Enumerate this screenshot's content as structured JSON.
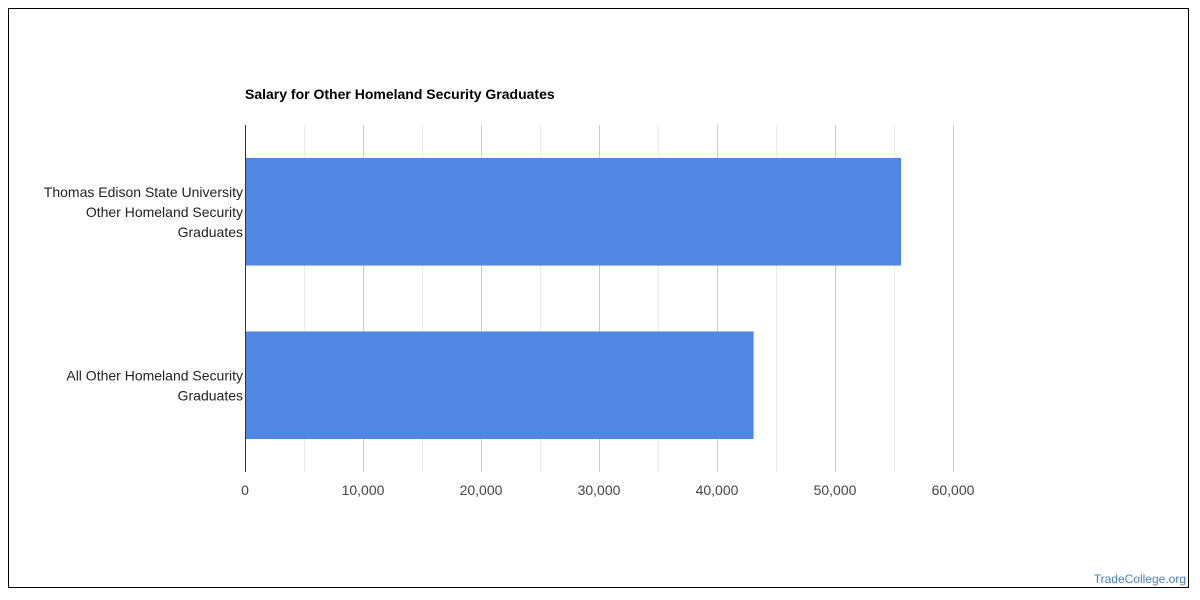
{
  "chart_data": {
    "type": "bar",
    "orientation": "horizontal",
    "title": "Salary for Other Homeland Security Graduates",
    "xlabel": "",
    "ylabel": "",
    "categories": [
      [
        "Thomas Edison State University",
        "Other Homeland Security",
        "Graduates"
      ],
      [
        "All Other Homeland Security",
        "Graduates"
      ]
    ],
    "values": [
      55600,
      43100
    ],
    "xlim": [
      0,
      60000
    ],
    "xticks": [
      0,
      10000,
      20000,
      30000,
      40000,
      50000,
      60000
    ],
    "xtick_labels": [
      "0",
      "10,000",
      "20,000",
      "30,000",
      "40,000",
      "50,000",
      "60,000"
    ],
    "grid": true,
    "legend": "none",
    "bar_color": "#5286e3"
  },
  "footer": {
    "watermark": "TradeCollege.org"
  }
}
